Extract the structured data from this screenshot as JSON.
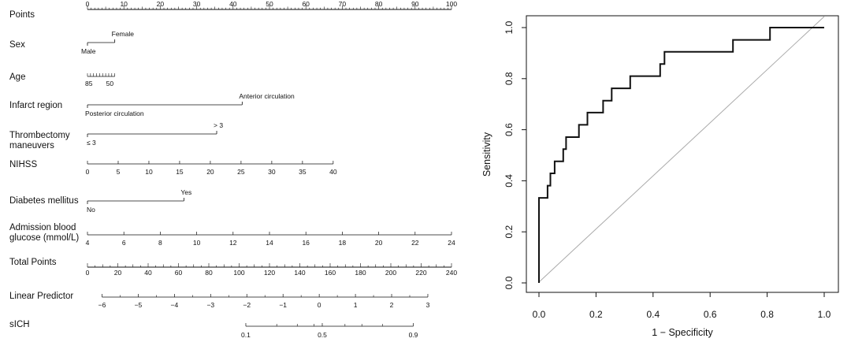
{
  "chart_data": [
    {
      "type": "nomogram",
      "rows": [
        {
          "label": "Points",
          "kind": "scale",
          "min": 0,
          "max": 100,
          "ticks": [
            0,
            10,
            20,
            30,
            40,
            50,
            60,
            70,
            80,
            90,
            100
          ],
          "minor_step": 1,
          "label_step": 10
        },
        {
          "label": "Sex",
          "kind": "categorical",
          "levels": [
            {
              "text": "Male",
              "points": 0,
              "side": "below"
            },
            {
              "text": "Female",
              "points": 7.5,
              "side": "above"
            }
          ]
        },
        {
          "label": "Age",
          "kind": "axis",
          "axis": [
            {
              "value": 85,
              "points": 0
            },
            {
              "value": 50,
              "points": 7.5
            }
          ],
          "tick_labels": [
            "85",
            "50"
          ],
          "minor_ticks": 9,
          "tick_side": "above"
        },
        {
          "label": "Infarct region",
          "kind": "categorical",
          "levels": [
            {
              "text": "Posterior circulation",
              "points": 0,
              "side": "below"
            },
            {
              "text": "Anterior circulation",
              "points": 42.5,
              "side": "above"
            }
          ]
        },
        {
          "label": [
            "Thrombectomy",
            "maneuvers"
          ],
          "kind": "categorical",
          "levels": [
            {
              "text": "≤ 3",
              "points": 0,
              "side": "below"
            },
            {
              "text": "> 3",
              "points": 35.5,
              "side": "above"
            }
          ]
        },
        {
          "label": "NIHSS",
          "kind": "axis",
          "axis": [
            {
              "value": 0,
              "points": 0
            },
            {
              "value": 40,
              "points": 67.5
            }
          ],
          "tick_labels": [
            "0",
            "5",
            "10",
            "15",
            "20",
            "25",
            "30",
            "35",
            "40"
          ],
          "tick_side": "above"
        },
        {
          "label": "Diabetes mellitus",
          "kind": "categorical",
          "levels": [
            {
              "text": "No",
              "points": 0,
              "side": "below"
            },
            {
              "text": "Yes",
              "points": 26.5,
              "side": "above"
            }
          ]
        },
        {
          "label": [
            "Admission blood",
            "glucose (mmol/L)"
          ],
          "kind": "axis",
          "axis": [
            {
              "value": 4,
              "points": 0
            },
            {
              "value": 24,
              "points": 100
            }
          ],
          "tick_labels": [
            "4",
            "6",
            "8",
            "10",
            "12",
            "14",
            "16",
            "18",
            "20",
            "22",
            "24"
          ],
          "tick_side": "above"
        },
        {
          "label": "Total Points",
          "kind": "scale",
          "min": 0,
          "max": 240,
          "ticks": [
            0,
            20,
            40,
            60,
            80,
            100,
            120,
            140,
            160,
            180,
            200,
            220,
            240
          ],
          "minor_step": 5,
          "label_step": 20
        },
        {
          "label": "Linear Predictor",
          "kind": "axis",
          "axis": [
            {
              "value": -6,
              "points": 4
            },
            {
              "value": 3,
              "points": 93.5
            }
          ],
          "tick_labels": [
            "−6",
            "−5",
            "−4",
            "−3",
            "−2",
            "−1",
            "0",
            "1",
            "2",
            "3"
          ],
          "tick_side": "above"
        },
        {
          "label": "sICH",
          "kind": "prob",
          "axis_values": [
            0.1,
            0.5,
            0.9
          ],
          "tick_labels": [
            "0.1",
            "0.5",
            "0.9"
          ],
          "points": [
            43.5,
            64.5,
            89.5
          ],
          "minor_ticks": [
            0.2,
            0.3,
            0.4,
            0.6,
            0.7,
            0.8
          ]
        }
      ]
    },
    {
      "type": "line",
      "subtype": "roc",
      "xlabel": "1 − Specificity",
      "ylabel": "Sensitivity",
      "xlim": [
        0,
        1
      ],
      "ylim": [
        0,
        1
      ],
      "x_ticks": [
        "0.0",
        "0.2",
        "0.4",
        "0.6",
        "0.8",
        "1.0"
      ],
      "y_ticks": [
        "0.0",
        "0.2",
        "0.4",
        "0.6",
        "0.8",
        "1.0"
      ],
      "reference_line": true,
      "series": [
        {
          "values_xy": [
            [
              0.0,
              0.0
            ],
            [
              0.0,
              0.333
            ],
            [
              0.03,
              0.333
            ],
            [
              0.03,
              0.381
            ],
            [
              0.04,
              0.381
            ],
            [
              0.04,
              0.429
            ],
            [
              0.055,
              0.429
            ],
            [
              0.055,
              0.476
            ],
            [
              0.085,
              0.476
            ],
            [
              0.085,
              0.524
            ],
            [
              0.095,
              0.524
            ],
            [
              0.095,
              0.571
            ],
            [
              0.14,
              0.571
            ],
            [
              0.14,
              0.619
            ],
            [
              0.17,
              0.619
            ],
            [
              0.17,
              0.667
            ],
            [
              0.225,
              0.667
            ],
            [
              0.225,
              0.714
            ],
            [
              0.255,
              0.714
            ],
            [
              0.255,
              0.762
            ],
            [
              0.32,
              0.762
            ],
            [
              0.32,
              0.81
            ],
            [
              0.425,
              0.81
            ],
            [
              0.425,
              0.857
            ],
            [
              0.44,
              0.857
            ],
            [
              0.44,
              0.905
            ],
            [
              0.68,
              0.905
            ],
            [
              0.68,
              0.952
            ],
            [
              0.81,
              0.952
            ],
            [
              0.81,
              1.0
            ],
            [
              1.0,
              1.0
            ]
          ]
        }
      ]
    }
  ]
}
